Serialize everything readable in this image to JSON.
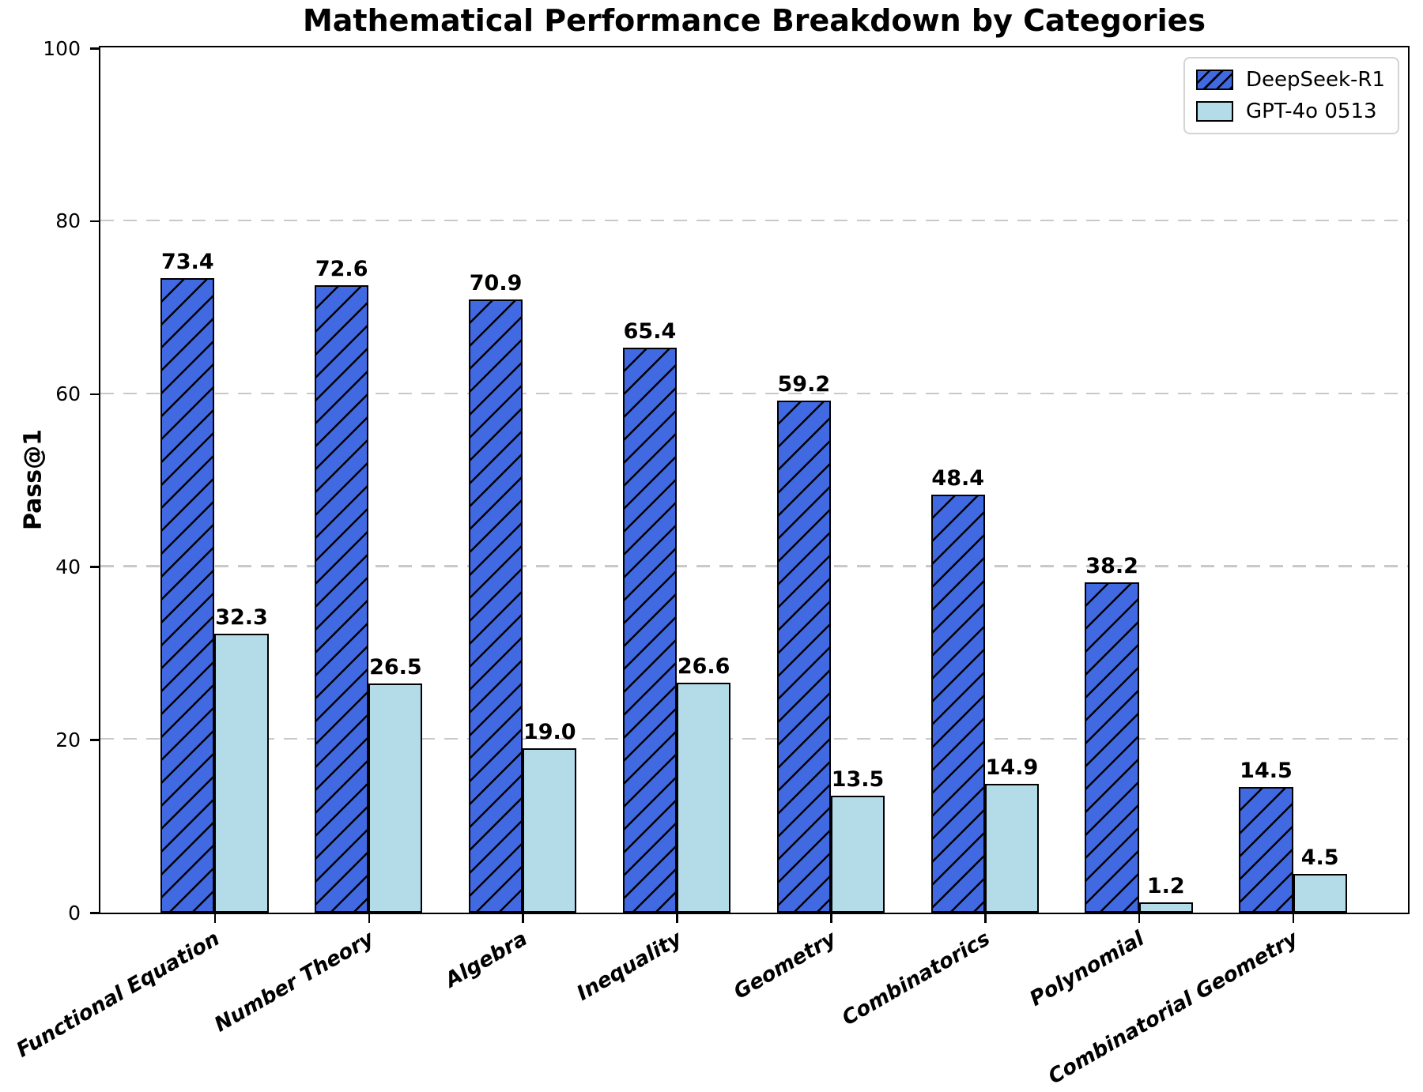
{
  "chart_data": {
    "type": "bar",
    "title": "Mathematical Performance Breakdown by Categories",
    "xlabel": "",
    "ylabel": "Pass@1",
    "ylim": [
      0,
      100
    ],
    "yticks": [
      0,
      20,
      40,
      60,
      80,
      100
    ],
    "grid": {
      "axis": "y",
      "style": "dashed",
      "color": "#c9c9c9",
      "at": [
        20,
        40,
        60,
        80
      ]
    },
    "legend_position": "upper-right",
    "categories": [
      "Functional Equation",
      "Number Theory",
      "Algebra",
      "Inequality",
      "Geometry",
      "Combinatorics",
      "Polynomial",
      "Combinatorial Geometry"
    ],
    "series": [
      {
        "name": "DeepSeek-R1",
        "color": "#4169E1",
        "edge_color": "#000000",
        "hatch": "/",
        "values": [
          73.4,
          72.6,
          70.9,
          65.4,
          59.2,
          48.4,
          38.2,
          14.5
        ]
      },
      {
        "name": "GPT-4o 0513",
        "color": "#B3DCE8",
        "edge_color": "#000000",
        "hatch": "",
        "values": [
          32.3,
          26.5,
          19.0,
          26.6,
          13.5,
          14.9,
          1.2,
          4.5
        ]
      }
    ],
    "value_label_decimals": 1
  }
}
